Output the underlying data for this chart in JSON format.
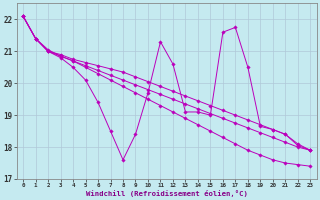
{
  "xlabel": "Windchill (Refroidissement éolien,°C)",
  "bg_color": "#c5eaf0",
  "grid_color": "#b0c8d8",
  "line_color": "#bb00bb",
  "xlim": [
    -0.5,
    23.5
  ],
  "ylim": [
    17,
    22.5
  ],
  "yticks": [
    17,
    18,
    19,
    20,
    21,
    22
  ],
  "xticks": [
    0,
    1,
    2,
    3,
    4,
    5,
    6,
    7,
    8,
    9,
    10,
    11,
    12,
    13,
    14,
    15,
    16,
    17,
    18,
    19,
    20,
    21,
    22,
    23
  ],
  "series": [
    [
      22.1,
      21.4,
      21.0,
      20.85,
      20.7,
      20.55,
      20.4,
      20.25,
      20.1,
      19.95,
      19.8,
      19.65,
      19.5,
      19.35,
      19.2,
      19.05,
      18.9,
      18.75,
      18.6,
      18.45,
      18.3,
      18.15,
      18.0,
      17.9
    ],
    [
      22.1,
      21.4,
      21.0,
      20.9,
      20.75,
      20.65,
      20.55,
      20.45,
      20.35,
      20.2,
      20.05,
      19.9,
      19.75,
      19.6,
      19.45,
      19.3,
      19.15,
      19.0,
      18.85,
      18.7,
      18.55,
      18.4,
      18.1,
      17.9
    ],
    [
      22.1,
      21.4,
      21.05,
      20.85,
      20.7,
      20.5,
      20.3,
      20.1,
      19.9,
      19.7,
      19.5,
      19.3,
      19.1,
      18.9,
      18.7,
      18.5,
      18.3,
      18.1,
      17.9,
      17.75,
      17.6,
      17.5,
      17.45,
      17.4
    ],
    [
      22.1,
      21.4,
      21.0,
      20.8,
      20.5,
      20.1,
      19.4,
      18.5,
      17.6,
      18.4,
      19.7,
      21.3,
      20.6,
      19.1,
      19.1,
      19.0,
      21.6,
      21.75,
      20.5,
      18.65,
      18.55,
      18.4,
      18.05,
      17.9
    ]
  ]
}
